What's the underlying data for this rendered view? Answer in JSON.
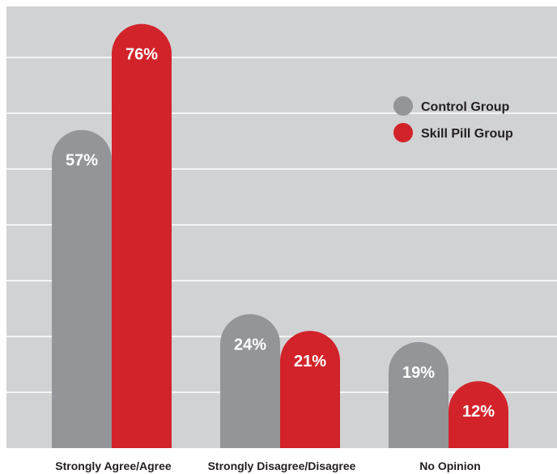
{
  "chart_data": {
    "type": "bar",
    "categories": [
      "Strongly Agree/Agree",
      "Strongly Disagree/Disagree",
      "No Opinion"
    ],
    "series": [
      {
        "name": "Control Group",
        "color": "#939598",
        "values": [
          57,
          24,
          19
        ],
        "labels": [
          "57%",
          "24%",
          "19%"
        ]
      },
      {
        "name": "Skill Pill Group",
        "color": "#d2232a",
        "values": [
          76,
          21,
          12
        ],
        "labels": [
          "76%",
          "21%",
          "12%"
        ]
      }
    ],
    "ylim": [
      0,
      80
    ],
    "grid": true,
    "legend": "top-right",
    "background_color": "#d1d2d4"
  }
}
